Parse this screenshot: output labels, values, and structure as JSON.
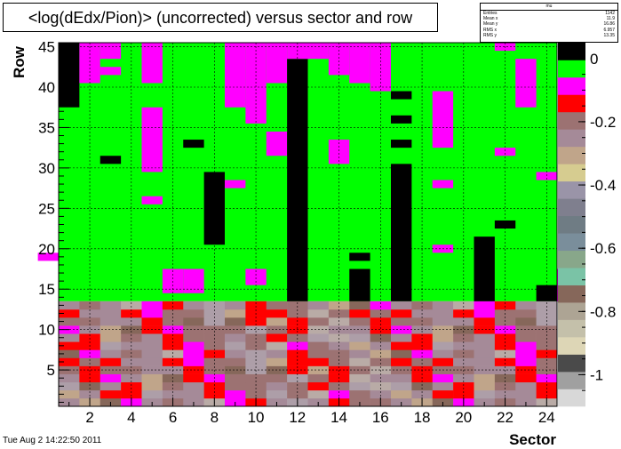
{
  "title": "<log(dEdx/Pion)> (uncorrected) versus sector and row",
  "stats": {
    "name": "mu",
    "rows": [
      {
        "label": "Entries",
        "value": "1142"
      },
      {
        "label": "Mean x",
        "value": "11.9"
      },
      {
        "label": "Mean y",
        "value": "16.86"
      },
      {
        "label": "RMS x",
        "value": "6.957"
      },
      {
        "label": "RMS y",
        "value": "13.35"
      }
    ]
  },
  "footer_date": "Tue Aug  2 14:22:50 2011",
  "chart_data": {
    "type": "heatmap",
    "title": "<log(dEdx/Pion)> (uncorrected) versus sector and row",
    "xlabel": "Sector",
    "ylabel": "Row",
    "xlim": [
      0.5,
      24.5
    ],
    "ylim": [
      0.5,
      45.5
    ],
    "x_ticks": [
      "2",
      "4",
      "6",
      "8",
      "10",
      "12",
      "14",
      "16",
      "18",
      "20",
      "22",
      "24"
    ],
    "y_ticks": [
      "5",
      "10",
      "15",
      "20",
      "25",
      "30",
      "35",
      "40",
      "45"
    ],
    "z_ticks": [
      "0",
      "-0.2",
      "-0.4",
      "-0.6",
      "-0.8",
      "-1"
    ],
    "zlim": [
      -1.1,
      0.05
    ],
    "grid": true,
    "palette_levels": [
      "#d8d8d8",
      "#a0a0a0",
      "#4a4a4a",
      "#ddd6b6",
      "#c4c0aa",
      "#ada494",
      "#86675a",
      "#7ac3a6",
      "#88a78a",
      "#7a8e9b",
      "#6f7c84",
      "#7f7f8e",
      "#9a94a8",
      "#d6cc90",
      "#c0a58a",
      "#a58a98",
      "#9c7272",
      "#ff0000",
      "#ff00ff",
      "#00ff00",
      "#000000"
    ],
    "upper_rows": [
      14,
      45
    ],
    "upper_base": "green",
    "upper_cells": [
      {
        "x": 1,
        "y": [
          38,
          45
        ],
        "c": "black"
      },
      {
        "x": 2,
        "y": [
          41,
          45
        ],
        "c": "magenta"
      },
      {
        "x": 3,
        "y": [
          44,
          45
        ],
        "c": "magenta"
      },
      {
        "x": 3,
        "y": [
          42,
          42
        ],
        "c": "magenta"
      },
      {
        "x": 3,
        "y": [
          31,
          31
        ],
        "c": "black"
      },
      {
        "x": 5,
        "y": [
          41,
          45
        ],
        "c": "magenta"
      },
      {
        "x": 5,
        "y": [
          30,
          37
        ],
        "c": "magenta"
      },
      {
        "x": 5,
        "y": [
          26,
          26
        ],
        "c": "magenta"
      },
      {
        "x": 7,
        "y": [
          33,
          33
        ],
        "c": "black"
      },
      {
        "x": 7,
        "y": [
          15,
          17
        ],
        "c": "magenta"
      },
      {
        "x": 6,
        "y": [
          15,
          17
        ],
        "c": "magenta"
      },
      {
        "x": 8,
        "y": [
          21,
          29
        ],
        "c": "black"
      },
      {
        "x": 9,
        "y": [
          28,
          28
        ],
        "c": "magenta"
      },
      {
        "x": 9,
        "y": [
          38,
          45
        ],
        "c": "magenta"
      },
      {
        "x": 10,
        "y": [
          36,
          45
        ],
        "c": "magenta"
      },
      {
        "x": 10,
        "y": [
          16,
          17
        ],
        "c": "magenta"
      },
      {
        "x": 11,
        "y": [
          41,
          45
        ],
        "c": "magenta"
      },
      {
        "x": 11,
        "y": [
          32,
          34
        ],
        "c": "magenta"
      },
      {
        "x": 12,
        "y": [
          14,
          43
        ],
        "c": "black"
      },
      {
        "x": 12,
        "y": [
          44,
          45
        ],
        "c": "magenta"
      },
      {
        "x": 13,
        "y": [
          44,
          45
        ],
        "c": "magenta"
      },
      {
        "x": 14,
        "y": [
          42,
          45
        ],
        "c": "magenta"
      },
      {
        "x": 14,
        "y": [
          31,
          33
        ],
        "c": "magenta"
      },
      {
        "x": 15,
        "y": [
          19,
          19
        ],
        "c": "black"
      },
      {
        "x": 15,
        "y": [
          14,
          17
        ],
        "c": "black"
      },
      {
        "x": 15,
        "y": [
          41,
          45
        ],
        "c": "magenta"
      },
      {
        "x": 16,
        "y": [
          40,
          45
        ],
        "c": "magenta"
      },
      {
        "x": 17,
        "y": [
          14,
          30
        ],
        "c": "black"
      },
      {
        "x": 17,
        "y": [
          39,
          39
        ],
        "c": "black"
      },
      {
        "x": 17,
        "y": [
          36,
          36
        ],
        "c": "black"
      },
      {
        "x": 17,
        "y": [
          33,
          33
        ],
        "c": "black"
      },
      {
        "x": 19,
        "y": [
          33,
          39
        ],
        "c": "magenta"
      },
      {
        "x": 19,
        "y": [
          28,
          28
        ],
        "c": "magenta"
      },
      {
        "x": 19,
        "y": [
          20,
          20
        ],
        "c": "magenta"
      },
      {
        "x": 21,
        "y": [
          14,
          21
        ],
        "c": "black"
      },
      {
        "x": 22,
        "y": [
          45,
          45
        ],
        "c": "magenta"
      },
      {
        "x": 22,
        "y": [
          32,
          32
        ],
        "c": "magenta"
      },
      {
        "x": 22,
        "y": [
          23,
          23
        ],
        "c": "black"
      },
      {
        "x": 23,
        "y": [
          38,
          43
        ],
        "c": "magenta"
      },
      {
        "x": 24,
        "y": [
          29,
          29
        ],
        "c": "magenta"
      },
      {
        "x": 24,
        "y": [
          14,
          15
        ],
        "c": "black"
      },
      {
        "x": 25,
        "y": [
          14,
          17
        ],
        "c": "magenta"
      },
      {
        "x": 0,
        "y": [
          19,
          19
        ],
        "c": "magenta"
      }
    ],
    "lower_rows": [
      1,
      13
    ],
    "lower_palette": [
      "#a58a98",
      "#9c7272",
      "#ad9ea8",
      "#c0a58a",
      "#b9aba6",
      "#86675a",
      "#ff0000",
      "#ff00ff",
      "#a0a0a0",
      "#d6cc90"
    ],
    "lower_pattern": [
      "0101020304567716",
      "1202031004667761",
      "2134012105660116",
      "0413015026617761",
      "5112045016663116",
      "1104201366671616"
    ]
  }
}
